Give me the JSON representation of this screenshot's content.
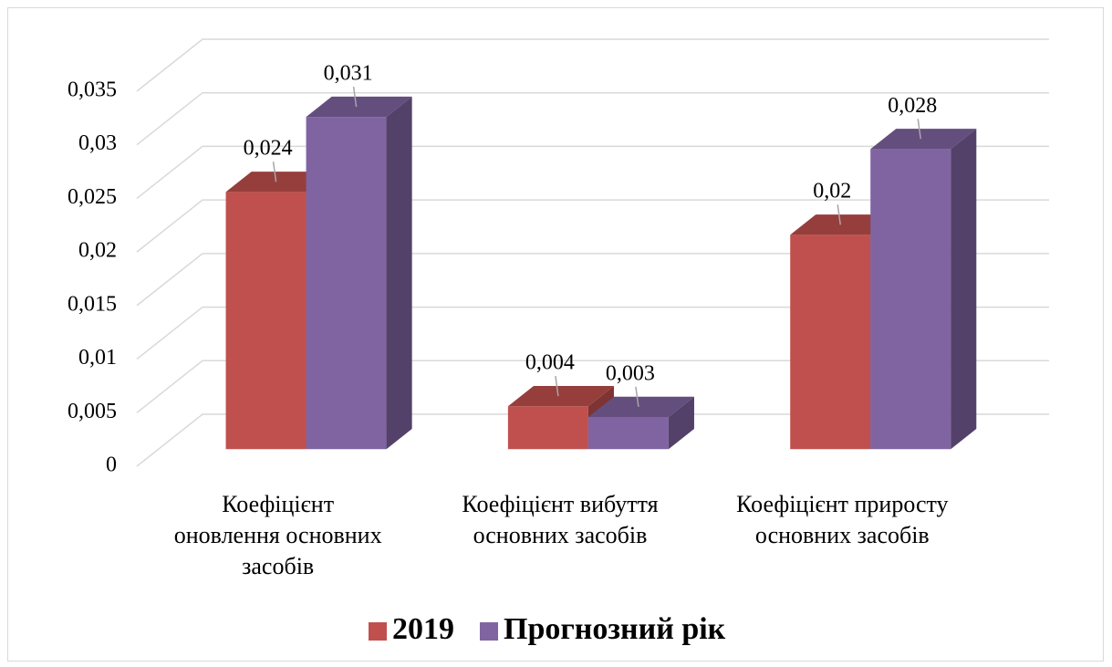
{
  "chart_data": {
    "type": "bar3d",
    "categories": [
      [
        "Коефіцієнт",
        "оновлення основних",
        "засобів"
      ],
      [
        "Коефіцієнт вибуття",
        "основних засобів"
      ],
      [
        "Коефіцієнт приросту",
        "основних засобів"
      ]
    ],
    "series": [
      {
        "name": "2019",
        "color": "#c0504d",
        "values": [
          0.024,
          0.004,
          0.02
        ],
        "value_labels": [
          "0,024",
          "0,004",
          "0,02"
        ]
      },
      {
        "name": "Прогнозний рік",
        "color": "#8064a2",
        "values": [
          0.031,
          0.003,
          0.028
        ],
        "value_labels": [
          "0,031",
          "0,003",
          "0,028"
        ]
      }
    ],
    "ylim": [
      0,
      0.035
    ],
    "yticks": [
      0,
      {
        "value": 0.005,
        "label": "0,005"
      },
      {
        "value": 0.01,
        "label": "0,01"
      },
      {
        "value": 0.015,
        "label": "0,015"
      },
      {
        "value": 0.02,
        "label": "0,02"
      },
      {
        "value": 0.025,
        "label": "0,025"
      },
      {
        "value": 0.03,
        "label": "0,03"
      },
      {
        "value": 0.035,
        "label": "0,035"
      }
    ],
    "grid": true,
    "legend": "bottom"
  }
}
